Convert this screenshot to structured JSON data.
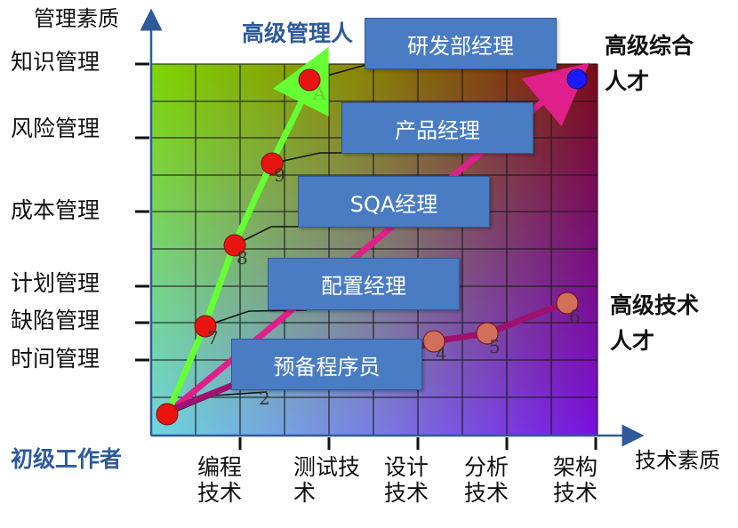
{
  "axes": {
    "y_title": "管理素质",
    "x_title": "技术素质",
    "origin_label": "初级工作者"
  },
  "y_labels": [
    "知识管理",
    "风险管理",
    "成本管理",
    "计划管理",
    "缺陷管理",
    "时间管理"
  ],
  "x_labels": [
    {
      "line1": "编程",
      "line2": "技术"
    },
    {
      "line1": "测试技",
      "line2": "术"
    },
    {
      "line1": "设计",
      "line2": "技术"
    },
    {
      "line1": "分析",
      "line2": "技术"
    },
    {
      "line1": "架构",
      "line2": "技术"
    }
  ],
  "corners": {
    "top_left_title": "高级管理人",
    "top_right_line1": "高级综合",
    "top_right_line2": "人才",
    "right_line1": "高级技术",
    "right_line2": "人才"
  },
  "callouts": [
    "研发部经理",
    "产品经理",
    "SQA经理",
    "配置经理",
    "预备程序员"
  ],
  "markers": [
    "A",
    "9",
    "8",
    "7",
    "2",
    "4",
    "5",
    "6"
  ],
  "colors": {
    "grid_top_left": "#7fd400",
    "grid_top_right": "#7a0a14",
    "grid_bottom_left": "#6fd6e0",
    "grid_bottom_right": "#7a10e0",
    "axis": "#2e5a9c",
    "callout_fill": "#4a7cc4",
    "management_path": "#66ff33",
    "combined_path": "#e0208a",
    "technical_path": "#a0106e",
    "red_marker": "#e8140f",
    "salmon_marker": "#d0705a",
    "blue_marker": "#1a1aff"
  }
}
